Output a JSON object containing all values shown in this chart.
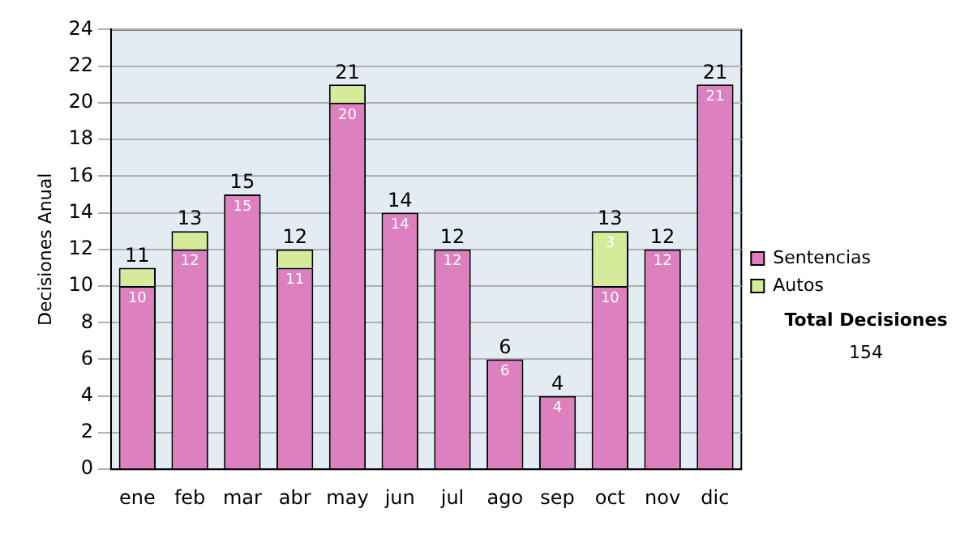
{
  "chart_data": {
    "type": "bar",
    "stacked": true,
    "ylabel": "Decisiones Anual",
    "categories": [
      "ene",
      "feb",
      "mar",
      "abr",
      "may",
      "jun",
      "jul",
      "ago",
      "sep",
      "oct",
      "nov",
      "dic"
    ],
    "series": [
      {
        "name": "Sentencias",
        "color": "#dd80c0",
        "values": [
          10,
          12,
          15,
          11,
          20,
          14,
          12,
          6,
          4,
          10,
          12,
          21
        ],
        "value_labels": [
          "10",
          "12",
          "15",
          "11",
          "20",
          "14",
          "12",
          "6",
          "4",
          "10",
          "12",
          "21"
        ]
      },
      {
        "name": "Autos",
        "color": "#d4eb9a",
        "values": [
          1,
          1,
          0,
          1,
          1,
          0,
          0,
          0,
          0,
          3,
          0,
          0
        ],
        "value_labels": [
          null,
          null,
          null,
          null,
          null,
          null,
          null,
          null,
          null,
          "3",
          null,
          null
        ]
      }
    ],
    "totals": [
      "11",
      "13",
      "15",
      "12",
      "21",
      "14",
      "12",
      "6",
      "4",
      "13",
      "12",
      "21"
    ],
    "ylim": [
      0,
      24
    ],
    "yticks": [
      0,
      2,
      4,
      6,
      8,
      10,
      12,
      14,
      16,
      18,
      20,
      22,
      24
    ],
    "grid": "y",
    "legend": "right",
    "annotations": [
      "Total Decisiones",
      "154"
    ]
  }
}
